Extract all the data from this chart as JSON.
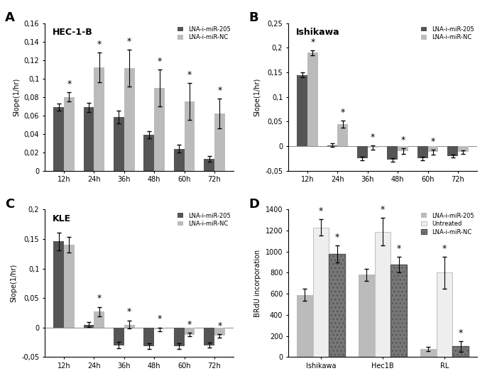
{
  "panel_A": {
    "title": "HEC-1-B",
    "label": "A",
    "xticklabels": [
      "12h",
      "24h",
      "36h",
      "48h",
      "60h",
      "72h"
    ],
    "series1_label": "LNA-i-miR-205",
    "series2_label": "LNA-i-miR-NC",
    "series1_color": "#555555",
    "series2_color": "#bbbbbb",
    "series1_values": [
      0.069,
      0.069,
      0.058,
      0.039,
      0.024,
      0.013
    ],
    "series2_values": [
      0.08,
      0.112,
      0.111,
      0.09,
      0.075,
      0.062
    ],
    "series1_errors": [
      0.004,
      0.005,
      0.007,
      0.004,
      0.004,
      0.003
    ],
    "series2_errors": [
      0.005,
      0.016,
      0.02,
      0.02,
      0.02,
      0.016
    ],
    "ylim": [
      0,
      0.16
    ],
    "yticks": [
      0,
      0.02,
      0.04,
      0.06,
      0.08,
      0.1,
      0.12,
      0.14,
      0.16
    ],
    "ytick_labels": [
      "0",
      "0,02",
      "0,04",
      "0,06",
      "0,08",
      "0,1",
      "0,12",
      "0,14",
      "0,16"
    ],
    "ylabel": "Slope(1/hr)",
    "star_on_series2": [
      true,
      true,
      true,
      true,
      true,
      true
    ]
  },
  "panel_B": {
    "title": "Ishikawa",
    "label": "B",
    "xticklabels": [
      "12h",
      "24h",
      "36h",
      "48h",
      "60h",
      "72h"
    ],
    "series1_label": "LNA-i-miR-205",
    "series2_label": "LNA-i-miR-NC",
    "series1_color": "#555555",
    "series2_color": "#bbbbbb",
    "series1_values": [
      0.145,
      0.002,
      -0.025,
      -0.028,
      -0.025,
      -0.02
    ],
    "series2_values": [
      0.19,
      0.045,
      -0.003,
      -0.01,
      -0.012,
      -0.012
    ],
    "series1_errors": [
      0.005,
      0.004,
      0.004,
      0.004,
      0.004,
      0.003
    ],
    "series2_errors": [
      0.005,
      0.007,
      0.004,
      0.006,
      0.005,
      0.004
    ],
    "ylim": [
      -0.05,
      0.25
    ],
    "yticks": [
      -0.05,
      0,
      0.05,
      0.1,
      0.15,
      0.2,
      0.25
    ],
    "ytick_labels": [
      "-0,05",
      "0",
      "0,05",
      "0,1",
      "0,15",
      "0,2",
      "0,25"
    ],
    "ylabel": "Slope(1/hr)",
    "star_on_series2": [
      true,
      true,
      true,
      true,
      true,
      false
    ]
  },
  "panel_C": {
    "title": "KLE",
    "label": "C",
    "xticklabels": [
      "12h",
      "24h",
      "36h",
      "48h",
      "60h",
      "72h"
    ],
    "series1_label": "LNA-i-miR-205",
    "series2_label": "LNA-i-miR-NC",
    "series1_color": "#555555",
    "series2_color": "#bbbbbb",
    "series1_values": [
      0.146,
      0.005,
      -0.03,
      -0.032,
      -0.032,
      -0.03
    ],
    "series2_values": [
      0.14,
      0.027,
      0.005,
      -0.003,
      -0.012,
      -0.014
    ],
    "series1_errors": [
      0.015,
      0.004,
      0.005,
      0.005,
      0.005,
      0.004
    ],
    "series2_errors": [
      0.013,
      0.008,
      0.007,
      0.003,
      0.003,
      0.003
    ],
    "ylim": [
      -0.05,
      0.2
    ],
    "yticks": [
      -0.05,
      0,
      0.05,
      0.1,
      0.15,
      0.2
    ],
    "ytick_labels": [
      "-0,05",
      "0",
      "0,05",
      "0,1",
      "0,15",
      "0,2"
    ],
    "ylabel": "Slope(1/hr)",
    "star_on_series2": [
      false,
      true,
      true,
      true,
      true,
      true
    ]
  },
  "panel_D": {
    "title": "",
    "label": "D",
    "xticklabels": [
      "Ishikawa",
      "Hec1B",
      "RL"
    ],
    "series1_label": "LNA-i-miR-205",
    "series2_label": "Untreated",
    "series3_label": "LNA-i-miR-NC",
    "series1_color": "#bbbbbb",
    "series2_color": "#eeeeee",
    "series3_color": "#777777",
    "series1_values": [
      590,
      780,
      75
    ],
    "series2_values": [
      1230,
      1190,
      800
    ],
    "series3_values": [
      980,
      875,
      100
    ],
    "series1_errors": [
      55,
      60,
      20
    ],
    "series2_errors": [
      80,
      130,
      150
    ],
    "series3_errors": [
      80,
      75,
      50
    ],
    "ylim": [
      0,
      1400
    ],
    "yticks": [
      0,
      200,
      400,
      600,
      800,
      1000,
      1200,
      1400
    ],
    "ytick_labels": [
      "0",
      "200",
      "400",
      "600",
      "800",
      "1000",
      "1200",
      "1400"
    ],
    "ylabel": "BRdU incorporation",
    "star_untreated": [
      true,
      true,
      true
    ],
    "star_nc": [
      true,
      true,
      true
    ]
  }
}
